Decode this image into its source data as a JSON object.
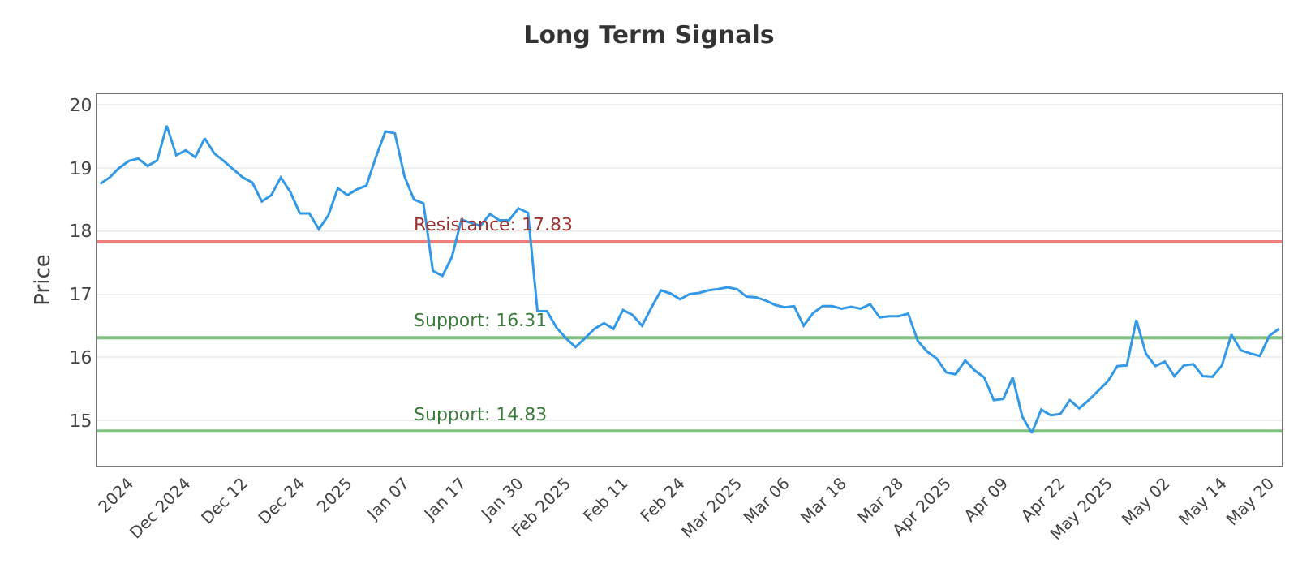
{
  "chart_data": {
    "type": "line",
    "title": "Long Term Signals",
    "ylabel": "Price",
    "categories": [
      null,
      null,
      null,
      "2024",
      null,
      null,
      null,
      null,
      null,
      "Dec 2024",
      null,
      null,
      null,
      null,
      null,
      "Dec 12",
      null,
      null,
      null,
      null,
      null,
      "Dec 24",
      null,
      null,
      null,
      null,
      "2025",
      null,
      null,
      null,
      null,
      null,
      "Jan 07",
      null,
      null,
      null,
      null,
      null,
      "Jan 17",
      null,
      null,
      null,
      null,
      null,
      "Jan 30",
      null,
      null,
      null,
      null,
      "Feb 2025",
      null,
      null,
      null,
      null,
      null,
      "Feb 11",
      null,
      null,
      null,
      null,
      null,
      "Feb 24",
      null,
      null,
      null,
      null,
      null,
      "Mar 2025",
      null,
      null,
      null,
      null,
      "Mar 06",
      null,
      null,
      null,
      null,
      null,
      "Mar 18",
      null,
      null,
      null,
      null,
      null,
      "Mar 28",
      null,
      null,
      null,
      null,
      "Apr 2025",
      null,
      null,
      null,
      null,
      null,
      "Apr 09",
      null,
      null,
      null,
      null,
      null,
      "Apr 22",
      null,
      null,
      null,
      null,
      "May 2025",
      null,
      null,
      null,
      null,
      null,
      "May 02",
      null,
      null,
      null,
      null,
      null,
      "May 14",
      null,
      null,
      null,
      null,
      "May 20",
      null
    ],
    "series": [
      {
        "color": "#3399e6",
        "values": [
          18.75,
          18.85,
          19.0,
          19.11,
          19.15,
          19.03,
          19.12,
          19.67,
          19.2,
          19.28,
          19.17,
          19.47,
          19.23,
          19.11,
          18.98,
          18.85,
          18.77,
          18.47,
          18.57,
          18.85,
          18.62,
          18.28,
          18.28,
          18.03,
          18.25,
          18.68,
          18.57,
          18.66,
          18.72,
          19.17,
          19.58,
          19.55,
          18.87,
          18.5,
          18.44,
          17.37,
          17.29,
          17.59,
          18.18,
          18.13,
          18.08,
          18.27,
          18.17,
          18.17,
          18.36,
          18.29,
          16.73,
          16.73,
          16.47,
          16.3,
          16.16,
          16.3,
          16.45,
          16.54,
          16.45,
          16.75,
          16.67,
          16.5,
          16.79,
          17.06,
          17.01,
          16.92,
          17.0,
          17.02,
          17.06,
          17.08,
          17.11,
          17.08,
          16.96,
          16.95,
          16.9,
          16.83,
          16.79,
          16.81,
          16.5,
          16.7,
          16.81,
          16.81,
          16.77,
          16.8,
          16.77,
          16.84,
          16.63,
          16.65,
          16.65,
          16.69,
          16.26,
          16.09,
          15.98,
          15.76,
          15.73,
          15.95,
          15.79,
          15.68,
          15.32,
          15.34,
          15.68,
          15.06,
          14.8,
          15.17,
          15.08,
          15.1,
          15.32,
          15.19,
          15.32,
          15.47,
          15.62,
          15.86,
          15.87,
          16.59,
          16.06,
          15.86,
          15.93,
          15.7,
          15.87,
          15.89,
          15.7,
          15.69,
          15.87,
          16.36,
          16.11,
          16.06,
          16.02,
          16.34,
          16.45
        ]
      }
    ],
    "ylim": [
      14.28,
      20.17
    ],
    "yticks": [
      15,
      16,
      17,
      18,
      19,
      20
    ],
    "grid": "y",
    "marker": "none",
    "line_style": "solid",
    "ref_lines": [
      {
        "axis": "y",
        "value": 17.83,
        "label": "Resistance: 17.83",
        "color": "#f08080"
      },
      {
        "axis": "y",
        "value": 16.31,
        "label": "Support: 16.31",
        "color": "#80c080"
      },
      {
        "axis": "y",
        "value": 14.83,
        "label": "Support: 14.83",
        "color": "#80c080"
      }
    ]
  }
}
